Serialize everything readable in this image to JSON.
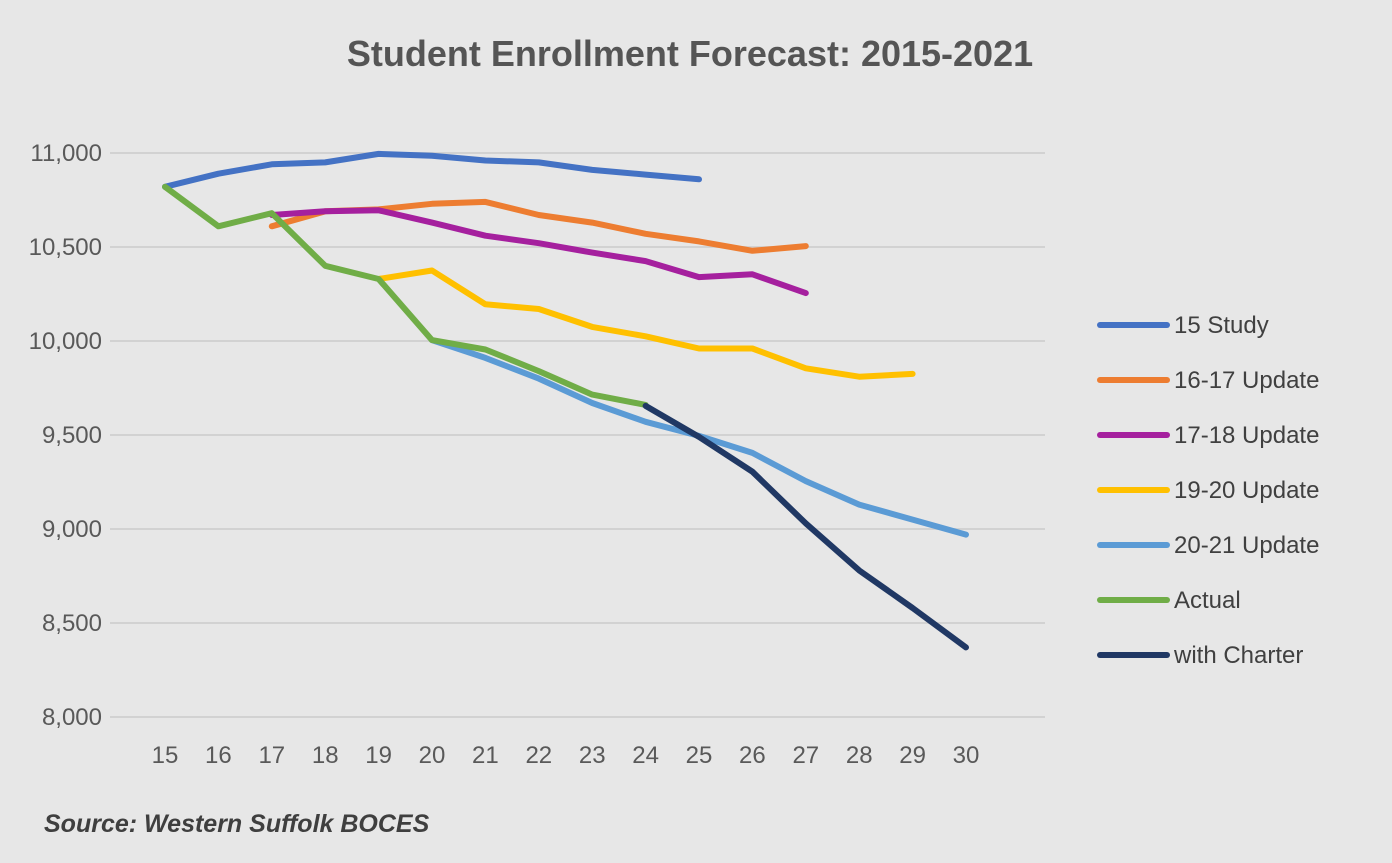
{
  "chart_data": {
    "type": "line",
    "title": "Student Enrollment Forecast: 2015-2021",
    "xlabel": "",
    "ylabel": "",
    "categories": [
      "15",
      "16",
      "17",
      "18",
      "19",
      "20",
      "21",
      "22",
      "23",
      "24",
      "25",
      "26",
      "27",
      "28",
      "29",
      "30"
    ],
    "ylim": [
      8000,
      11000
    ],
    "yticks": [
      8000,
      8500,
      9000,
      9500,
      10000,
      10500,
      11000
    ],
    "ytick_labels": [
      "8,000",
      "8,500",
      "9,000",
      "9,500",
      "10,000",
      "10,500",
      "11,000"
    ],
    "grid": true,
    "legend_position": "right",
    "source": "Source: Western Suffolk BOCES",
    "series": [
      {
        "name": "15 Study",
        "color": "#4472c4",
        "x": [
          15,
          16,
          17,
          18,
          19,
          20,
          21,
          22,
          23,
          24,
          25
        ],
        "values": [
          10820,
          10890,
          10940,
          10950,
          10995,
          10985,
          10960,
          10950,
          10910,
          10885,
          10860
        ]
      },
      {
        "name": "16-17 Update",
        "color": "#ed7d31",
        "x": [
          17,
          18,
          19,
          20,
          21,
          22,
          23,
          24,
          25,
          26,
          27
        ],
        "values": [
          10610,
          10690,
          10700,
          10730,
          10740,
          10670,
          10630,
          10570,
          10530,
          10480,
          10505
        ]
      },
      {
        "name": "17-18 Update",
        "color": "#a5209e",
        "x": [
          17,
          18,
          19,
          20,
          21,
          22,
          23,
          24,
          25,
          26,
          27
        ],
        "values": [
          10670,
          10690,
          10695,
          10630,
          10560,
          10520,
          10470,
          10425,
          10340,
          10355,
          10255
        ]
      },
      {
        "name": "19-20 Update",
        "color": "#ffc000",
        "x": [
          19,
          20,
          21,
          22,
          23,
          24,
          25,
          26,
          27,
          28,
          29
        ],
        "values": [
          10330,
          10375,
          10195,
          10170,
          10075,
          10025,
          9960,
          9960,
          9855,
          9810,
          9825
        ]
      },
      {
        "name": "20-21 Update",
        "color": "#5b9bd5",
        "x": [
          20,
          21,
          22,
          23,
          24,
          25,
          26,
          27,
          28,
          29,
          30
        ],
        "values": [
          10005,
          9910,
          9800,
          9670,
          9570,
          9495,
          9405,
          9255,
          9130,
          9050,
          8970
        ]
      },
      {
        "name": "Actual",
        "color": "#70ad47",
        "x": [
          15,
          16,
          17,
          18,
          19,
          20,
          21,
          22,
          23,
          24
        ],
        "values": [
          10820,
          10610,
          10680,
          10400,
          10330,
          10005,
          9955,
          9840,
          9715,
          9660
        ]
      },
      {
        "name": "with Charter",
        "color": "#203864",
        "x": [
          24,
          25,
          26,
          27,
          28,
          29,
          30
        ],
        "values": [
          9655,
          9490,
          9305,
          9030,
          8780,
          8580,
          8370
        ]
      }
    ]
  }
}
